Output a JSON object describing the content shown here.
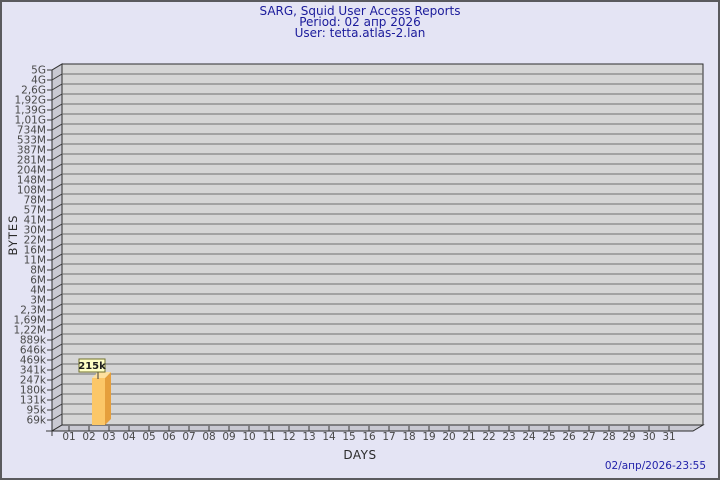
{
  "header": {
    "title": "SARG, Squid User Access Reports",
    "period": "Period: 02 апр 2026",
    "user": "User: tetta.atlas-2.lan"
  },
  "footer": {
    "timestamp": "02/апр/2026-23:55"
  },
  "chart_data": {
    "type": "bar",
    "title": "SARG, Squid User Access Reports",
    "subtitle": [
      "Period: 02 апр 2026",
      "User: tetta.atlas-2.lan"
    ],
    "xlabel": "DAYS",
    "ylabel": "BYTES",
    "y_scale": "log",
    "legend": "none",
    "grid": true,
    "y_tick_labels_top_to_bottom": [
      "5G",
      "4G",
      "2,6G",
      "1,92G",
      "1,39G",
      "1,01G",
      "734M",
      "533M",
      "387M",
      "281M",
      "204M",
      "148M",
      "108M",
      "78M",
      "57M",
      "41M",
      "30M",
      "22M",
      "16M",
      "11M",
      "8M",
      "6M",
      "4M",
      "3M",
      "2,3M",
      "1,69M",
      "1,22M",
      "889k",
      "646k",
      "469k",
      "341k",
      "247k",
      "180k",
      "131k",
      "95k",
      "69k"
    ],
    "y_top_value_bytes": 5000000000,
    "y_bottom_value_bytes": 69000,
    "x_tick_labels": [
      "01",
      "02",
      "03",
      "04",
      "05",
      "06",
      "07",
      "08",
      "09",
      "10",
      "11",
      "12",
      "13",
      "14",
      "15",
      "16",
      "17",
      "18",
      "19",
      "20",
      "21",
      "22",
      "23",
      "24",
      "25",
      "26",
      "27",
      "28",
      "29",
      "30",
      "31"
    ],
    "bars": [
      {
        "x": "02",
        "annotation": "215k",
        "value_bytes": 215000
      }
    ],
    "colors": {
      "page_bg": "#e4e4f4",
      "plot_bg": "#d5d5d5",
      "wall_bg": "#c9c9d2",
      "grid_line": "#6e6e6e",
      "frame": "#2d2d2d",
      "hatch": "#3a3a3a",
      "tick_text": "#4a4a4a",
      "axis_title_text": "#2b2b2b",
      "title_text": "#1b1b9b",
      "timestamp_text": "#2222aa",
      "bar_front": "#fbc768",
      "bar_side": "#e59f3c",
      "bar_top": "#fde09e",
      "annotation_bg": "#ffffc6",
      "annotation_border": "#6f6f2c",
      "annotation_text": "#1f1f1f"
    }
  }
}
